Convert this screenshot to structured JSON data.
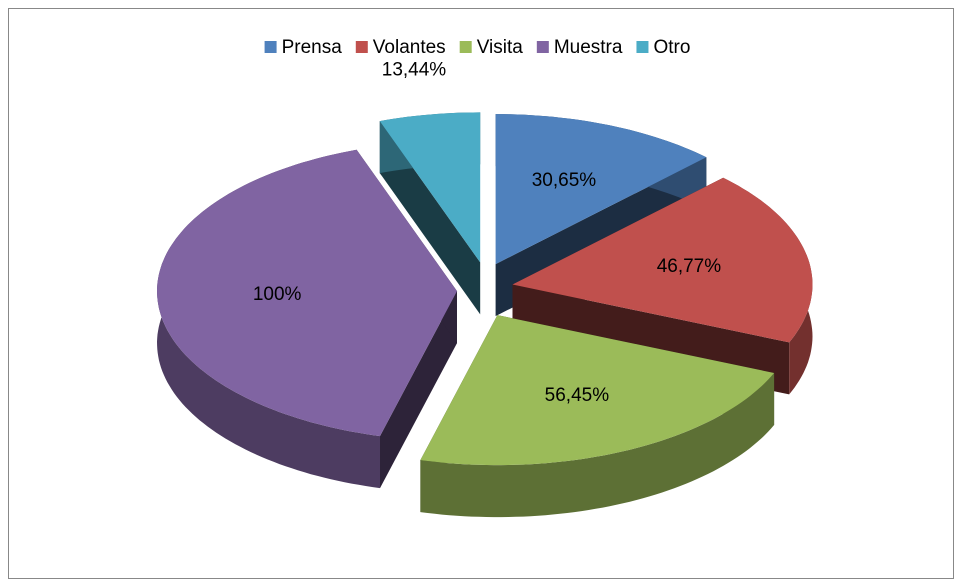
{
  "chart_data": {
    "type": "pie",
    "three_d": true,
    "exploded": true,
    "categories": [
      "Prensa",
      "Volantes",
      "Visita",
      "Muestra",
      "Otro"
    ],
    "values": [
      30.65,
      46.77,
      56.45,
      100,
      13.44
    ],
    "value_labels": [
      "30,65%",
      "46,77%",
      "56,45%",
      "100%",
      "13,44%"
    ],
    "colors": [
      "#4f81bd",
      "#c0504d",
      "#9bbb59",
      "#8064a2",
      "#4bacc6"
    ],
    "legend": "top"
  }
}
